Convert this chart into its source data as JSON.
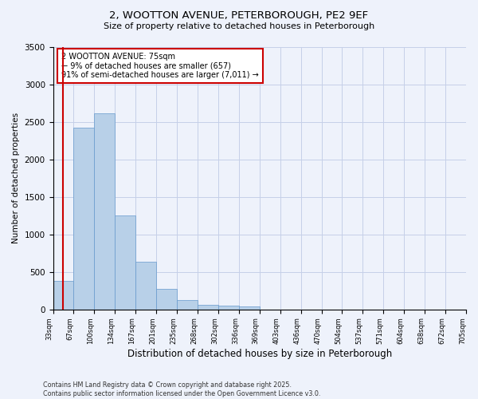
{
  "title1": "2, WOOTTON AVENUE, PETERBOROUGH, PE2 9EF",
  "title2": "Size of property relative to detached houses in Peterborough",
  "xlabel": "Distribution of detached houses by size in Peterborough",
  "ylabel": "Number of detached properties",
  "bar_heights": [
    380,
    2420,
    2620,
    1250,
    640,
    270,
    120,
    60,
    50,
    40,
    0,
    0,
    0,
    0,
    0,
    0,
    0,
    0,
    0,
    0
  ],
  "bin_labels": [
    "33sqm",
    "67sqm",
    "100sqm",
    "134sqm",
    "167sqm",
    "201sqm",
    "235sqm",
    "268sqm",
    "302sqm",
    "336sqm",
    "369sqm",
    "403sqm",
    "436sqm",
    "470sqm",
    "504sqm",
    "537sqm",
    "571sqm",
    "604sqm",
    "638sqm",
    "672sqm",
    "705sqm"
  ],
  "bar_color": "#b8d0e8",
  "bar_edge_color": "#6699cc",
  "vline_color": "#cc0000",
  "vline_position": 0.5,
  "annotation_text": "2 WOOTTON AVENUE: 75sqm\n← 9% of detached houses are smaller (657)\n91% of semi-detached houses are larger (7,011) →",
  "annotation_box_color": "#ffffff",
  "annotation_border_color": "#cc0000",
  "ylim": [
    0,
    3500
  ],
  "yticks": [
    0,
    500,
    1000,
    1500,
    2000,
    2500,
    3000,
    3500
  ],
  "footnote": "Contains HM Land Registry data © Crown copyright and database right 2025.\nContains public sector information licensed under the Open Government Licence v3.0.",
  "bg_color": "#eef2fb",
  "grid_color": "#c5cfe8"
}
